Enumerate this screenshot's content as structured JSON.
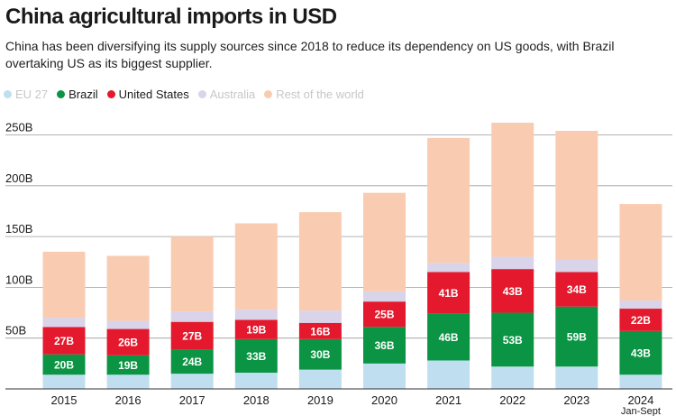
{
  "title": "China agricultural imports in USD",
  "subtitle": "China has been diversifying its supply sources since 2018 to reduce its dependency on US goods, with Brazil overtaking US as its biggest supplier.",
  "legend": [
    {
      "label": "EU 27",
      "color": "#bfdff0",
      "muted": true
    },
    {
      "label": "Brazil",
      "color": "#0a9443",
      "muted": false
    },
    {
      "label": "United States",
      "color": "#e4192d",
      "muted": false
    },
    {
      "label": "Australia",
      "color": "#d9d4ea",
      "muted": true
    },
    {
      "label": "Rest of the world",
      "color": "#f9ccb2",
      "muted": true
    }
  ],
  "chart_data": {
    "type": "bar",
    "stacked": true,
    "title": "China agricultural imports in USD",
    "xlabel": "",
    "ylabel": "",
    "ylim": [
      0,
      250
    ],
    "y_ticks": [
      "50B",
      "100B",
      "150B",
      "200B",
      "250B"
    ],
    "y_tick_values": [
      50,
      100,
      150,
      200,
      250
    ],
    "grid": true,
    "legend_position": "top-left",
    "categories": [
      "2015",
      "2016",
      "2017",
      "2018",
      "2019",
      "2020",
      "2021",
      "2022",
      "2023",
      "2024"
    ],
    "category_notes": {
      "2024": "Jan-Sept"
    },
    "series": [
      {
        "name": "EU 27",
        "color": "#bfdff0",
        "values": [
          14,
          14,
          15,
          16,
          19,
          25,
          28,
          22,
          22,
          14
        ],
        "labels": [
          "",
          "",
          "",
          "",
          "",
          "",
          "",
          "",
          "",
          ""
        ]
      },
      {
        "name": "Brazil",
        "color": "#0a9443",
        "values": [
          20,
          19,
          24,
          33,
          30,
          36,
          46,
          53,
          59,
          43
        ],
        "labels": [
          "20B",
          "19B",
          "24B",
          "33B",
          "30B",
          "36B",
          "46B",
          "53B",
          "59B",
          "43B"
        ]
      },
      {
        "name": "United States",
        "color": "#e4192d",
        "values": [
          27,
          26,
          27,
          19,
          16,
          25,
          41,
          43,
          34,
          22
        ],
        "labels": [
          "27B",
          "26B",
          "27B",
          "19B",
          "16B",
          "25B",
          "41B",
          "43B",
          "34B",
          "22B"
        ]
      },
      {
        "name": "Australia",
        "color": "#d9d4ea",
        "values": [
          9,
          8,
          10,
          10,
          12,
          10,
          9,
          12,
          12,
          8
        ],
        "labels": [
          "",
          "",
          "",
          "",
          "",
          "",
          "",
          "",
          "",
          ""
        ]
      },
      {
        "name": "Rest of the world",
        "color": "#f9ccb2",
        "values": [
          65,
          64,
          74,
          85,
          97,
          97,
          123,
          132,
          127,
          95
        ],
        "labels": [
          "",
          "",
          "",
          "",
          "",
          "",
          "",
          "",
          "",
          ""
        ]
      }
    ]
  }
}
